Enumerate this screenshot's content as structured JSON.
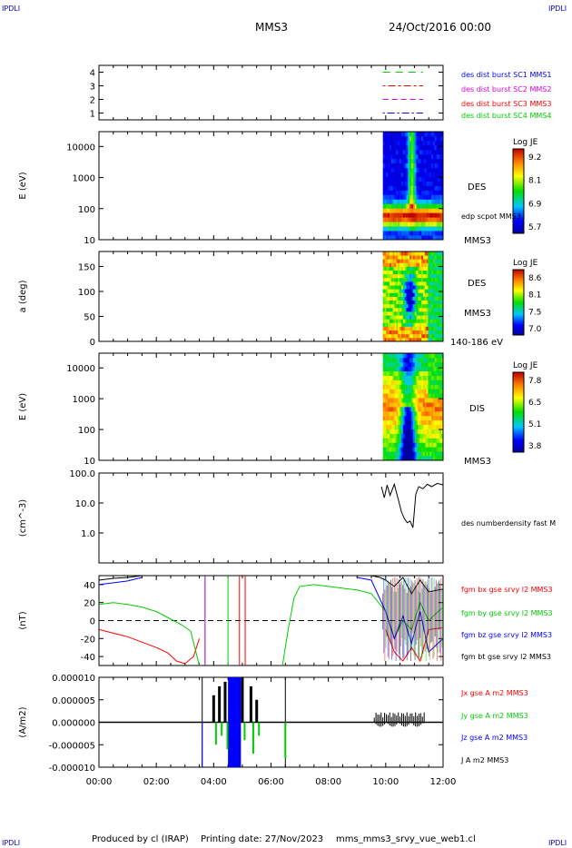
{
  "corner_tl": "IPDLI",
  "corner_tr": "IPDLI",
  "corner_bl": "IPDLI",
  "corner_br": "IPDLI",
  "header": {
    "spacecraft": "MMS3",
    "date": "24/Oct/2016 00:00"
  },
  "footer": {
    "produced_by": "Produced by cl (IRAP)",
    "printing_date": "Printing date: 27/Nov/2023",
    "filename": "mms_mms3_srvy_vue_web1.cl"
  },
  "x_axis": {
    "range_hours": [
      0,
      12
    ],
    "tick_labels": [
      "00:00",
      "02:00",
      "04:00",
      "06:00",
      "08:00",
      "10:00",
      "12:00"
    ]
  },
  "chart_data": [
    {
      "type": "line",
      "panel": "availability",
      "ylim": [
        0.5,
        4.5
      ],
      "ytick_labels": [
        "1",
        "2",
        "3",
        "4"
      ],
      "series": [
        {
          "name": "des dist burst SC1 MMS1",
          "color": "#0000ff",
          "y": 1,
          "x": [
            9.9,
            11.3
          ]
        },
        {
          "name": "des dist burst SC2 MMS2",
          "color": "#e000e0",
          "y": 2,
          "x": [
            9.9,
            11.3
          ]
        },
        {
          "name": "des dist burst SC3 MMS3",
          "color": "#ff0000",
          "y": 3,
          "x": [
            9.9,
            11.3
          ]
        },
        {
          "name": "des dist burst SC4 MMS4",
          "color": "#00cc00",
          "y": 4,
          "x": [
            9.9,
            11.3
          ]
        }
      ]
    },
    {
      "type": "heatmap",
      "panel": "des_energy",
      "ylabel": "E (eV)",
      "yscale": "log",
      "ylim": [
        10,
        30000
      ],
      "ytick_labels": [
        "10",
        "100",
        "1000",
        "10000"
      ],
      "side_labels": [
        "DES",
        "edp scpot MMS3",
        "MMS3"
      ],
      "colorbar": {
        "title": "Log JE",
        "tick_labels": [
          "9.2",
          "8.1",
          "6.9",
          "5.7"
        ],
        "range": [
          5.7,
          9.2
        ]
      },
      "data_x_range": [
        9.9,
        12.0
      ]
    },
    {
      "type": "heatmap",
      "panel": "des_pitch",
      "ylabel": "a (deg)",
      "ylim": [
        0,
        180
      ],
      "ytick_labels": [
        "0",
        "50",
        "100",
        "150"
      ],
      "side_labels": [
        "DES",
        "MMS3",
        "140-186 eV"
      ],
      "colorbar": {
        "title": "Log JE",
        "tick_labels": [
          "8.6",
          "8.1",
          "7.5",
          "7.0"
        ],
        "range": [
          7.0,
          8.6
        ]
      },
      "data_x_range": [
        9.9,
        12.0
      ]
    },
    {
      "type": "heatmap",
      "panel": "dis_energy",
      "ylabel": "E (eV)",
      "yscale": "log",
      "ylim": [
        10,
        30000
      ],
      "ytick_labels": [
        "10",
        "100",
        "1000",
        "10000"
      ],
      "side_labels": [
        "DIS",
        "MMS3"
      ],
      "colorbar": {
        "title": "Log JE",
        "tick_labels": [
          "7.8",
          "6.5",
          "5.1",
          "3.8"
        ],
        "range": [
          3.8,
          7.8
        ]
      },
      "data_x_range": [
        9.9,
        12.0
      ]
    },
    {
      "type": "line",
      "panel": "density",
      "ylabel": "(cm^-3)",
      "yscale": "log",
      "ylim": [
        0.1,
        100
      ],
      "ytick_labels": [
        "1.0",
        "10.0",
        "100.0"
      ],
      "series": [
        {
          "name": "des numberdensity fast M",
          "color": "#000000",
          "x": [
            9.85,
            9.95,
            10.05,
            10.15,
            10.3,
            10.45,
            10.55,
            10.65,
            10.75,
            10.85,
            10.95,
            11.05,
            11.15,
            11.3,
            11.45,
            11.6,
            11.8,
            12.0
          ],
          "y": [
            35,
            15,
            40,
            18,
            42,
            12,
            5,
            3,
            2.2,
            2.5,
            1.5,
            20,
            35,
            30,
            42,
            35,
            45,
            40
          ]
        }
      ]
    },
    {
      "type": "line",
      "panel": "magnetic_field",
      "ylabel": "(nT)",
      "ylim": [
        -50,
        50
      ],
      "ytick_labels": [
        "-40",
        "-20",
        "0",
        "20",
        "40"
      ],
      "series": [
        {
          "name": "fgm bx gse srvy l2 MMS3",
          "color": "#ff0000",
          "x": [
            0,
            0.5,
            1.0,
            1.5,
            2.0,
            2.4,
            2.7,
            3.0,
            3.3,
            3.5,
            10.0,
            10.3,
            10.6,
            10.9,
            11.2,
            11.5,
            12.0
          ],
          "y": [
            -10,
            -14,
            -18,
            -24,
            -30,
            -36,
            -45,
            -48,
            -40,
            -20,
            -10,
            -35,
            -45,
            -30,
            -45,
            -10,
            -8
          ]
        },
        {
          "name": "fgm by gse srvy l2 MMS3",
          "color": "#00cc00",
          "x": [
            0,
            0.5,
            1.0,
            1.5,
            2.0,
            2.3,
            2.6,
            2.9,
            3.2,
            3.5,
            6.4,
            6.6,
            6.8,
            7.0,
            7.5,
            8.0,
            8.5,
            9.0,
            9.5,
            10.0,
            10.3,
            10.6,
            10.9,
            11.2,
            11.5,
            12.0
          ],
          "y": [
            18,
            20,
            18,
            15,
            10,
            5,
            0,
            -5,
            -12,
            -50,
            -50,
            -10,
            25,
            38,
            40,
            38,
            36,
            34,
            30,
            10,
            -20,
            0,
            -10,
            20,
            0,
            15
          ]
        },
        {
          "name": "fgm bz gse srvy l2 MMS3",
          "color": "#0000ff",
          "x": [
            0,
            0.5,
            1.0,
            1.5,
            9.0,
            9.5,
            10.0,
            10.3,
            10.6,
            10.9,
            11.2,
            11.5,
            12.0
          ],
          "y": [
            40,
            42,
            44,
            48,
            48,
            45,
            10,
            -20,
            5,
            -25,
            10,
            -35,
            -20
          ]
        },
        {
          "name": "fgm bt gse srvy l2 MMS3",
          "color": "#000000",
          "x": [
            0,
            0.5,
            1.0,
            1.5,
            9.5,
            9.8,
            10.0,
            10.3,
            10.6,
            10.9,
            11.2,
            11.5,
            12.0
          ],
          "y": [
            45,
            47,
            48,
            50,
            50,
            48,
            45,
            38,
            48,
            30,
            45,
            32,
            35
          ]
        }
      ]
    },
    {
      "type": "line",
      "panel": "current_density",
      "ylabel": "(A/m2)",
      "ylim": [
        -1e-05,
        1e-05
      ],
      "ytick_labels": [
        "-0.000010",
        "-0.000005",
        "0.000000",
        "0.000005",
        "0.000010"
      ],
      "series": [
        {
          "name": "Jx gse A m2 MMS3",
          "color": "#ff0000"
        },
        {
          "name": "Jy gse A m2 MMS3",
          "color": "#00cc00"
        },
        {
          "name": "Jz gse A m2 MMS3",
          "color": "#0000ff"
        },
        {
          "name": "J A m2 MMS3",
          "color": "#000000"
        }
      ]
    }
  ]
}
